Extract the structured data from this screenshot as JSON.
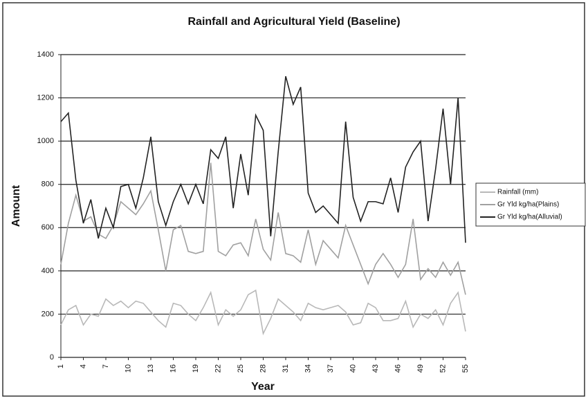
{
  "chart_data": {
    "type": "line",
    "title": "Rainfall and Agricultural Yield (Baseline)",
    "xlabel": "Year",
    "ylabel": "Amount",
    "x": [
      1,
      2,
      3,
      4,
      5,
      6,
      7,
      8,
      9,
      10,
      11,
      12,
      13,
      14,
      15,
      16,
      17,
      18,
      19,
      20,
      21,
      22,
      23,
      24,
      25,
      26,
      27,
      28,
      29,
      30,
      31,
      32,
      33,
      34,
      35,
      36,
      37,
      38,
      39,
      40,
      41,
      42,
      43,
      44,
      45,
      46,
      47,
      48,
      49,
      50,
      51,
      52,
      53,
      54,
      55
    ],
    "xlim": [
      1,
      55
    ],
    "xticks": [
      1,
      4,
      7,
      10,
      13,
      16,
      19,
      22,
      25,
      28,
      31,
      34,
      37,
      40,
      43,
      46,
      49,
      52,
      55
    ],
    "ylim": [
      0,
      1400
    ],
    "yticks": [
      0,
      200,
      400,
      600,
      800,
      1000,
      1200,
      1400
    ],
    "grid": true,
    "legend": "right",
    "series": [
      {
        "name": "Rainfall (mm)",
        "color": "#b8b8b8",
        "values": [
          150,
          220,
          240,
          150,
          200,
          190,
          270,
          240,
          260,
          230,
          260,
          250,
          210,
          170,
          140,
          250,
          240,
          200,
          170,
          230,
          300,
          150,
          220,
          190,
          220,
          290,
          310,
          110,
          180,
          270,
          240,
          210,
          170,
          250,
          230,
          220,
          230,
          240,
          210,
          150,
          160,
          250,
          230,
          170,
          170,
          180,
          260,
          140,
          200,
          180,
          220,
          150,
          250,
          300,
          120
        ]
      },
      {
        "name": "Gr Yld kg/ha(Plains)",
        "color": "#a0a0a0",
        "values": [
          430,
          620,
          750,
          630,
          650,
          570,
          550,
          610,
          720,
          690,
          660,
          710,
          770,
          590,
          400,
          590,
          610,
          490,
          480,
          490,
          900,
          490,
          470,
          520,
          530,
          470,
          640,
          500,
          450,
          670,
          480,
          470,
          440,
          590,
          430,
          540,
          500,
          460,
          610,
          520,
          430,
          340,
          430,
          480,
          430,
          370,
          430,
          640,
          360,
          410,
          370,
          440,
          380,
          440,
          290
        ]
      },
      {
        "name": "Gr Yld kg/ha(Alluvial)",
        "color": "#222222",
        "values": [
          1090,
          1130,
          820,
          620,
          730,
          550,
          690,
          600,
          790,
          800,
          690,
          830,
          1020,
          720,
          610,
          720,
          800,
          710,
          800,
          710,
          960,
          920,
          1020,
          690,
          940,
          750,
          1120,
          1050,
          560,
          950,
          1300,
          1170,
          1250,
          760,
          670,
          700,
          660,
          620,
          1090,
          740,
          630,
          720,
          720,
          710,
          830,
          670,
          880,
          950,
          1000,
          630,
          870,
          1150,
          800,
          1200,
          530
        ]
      }
    ]
  }
}
